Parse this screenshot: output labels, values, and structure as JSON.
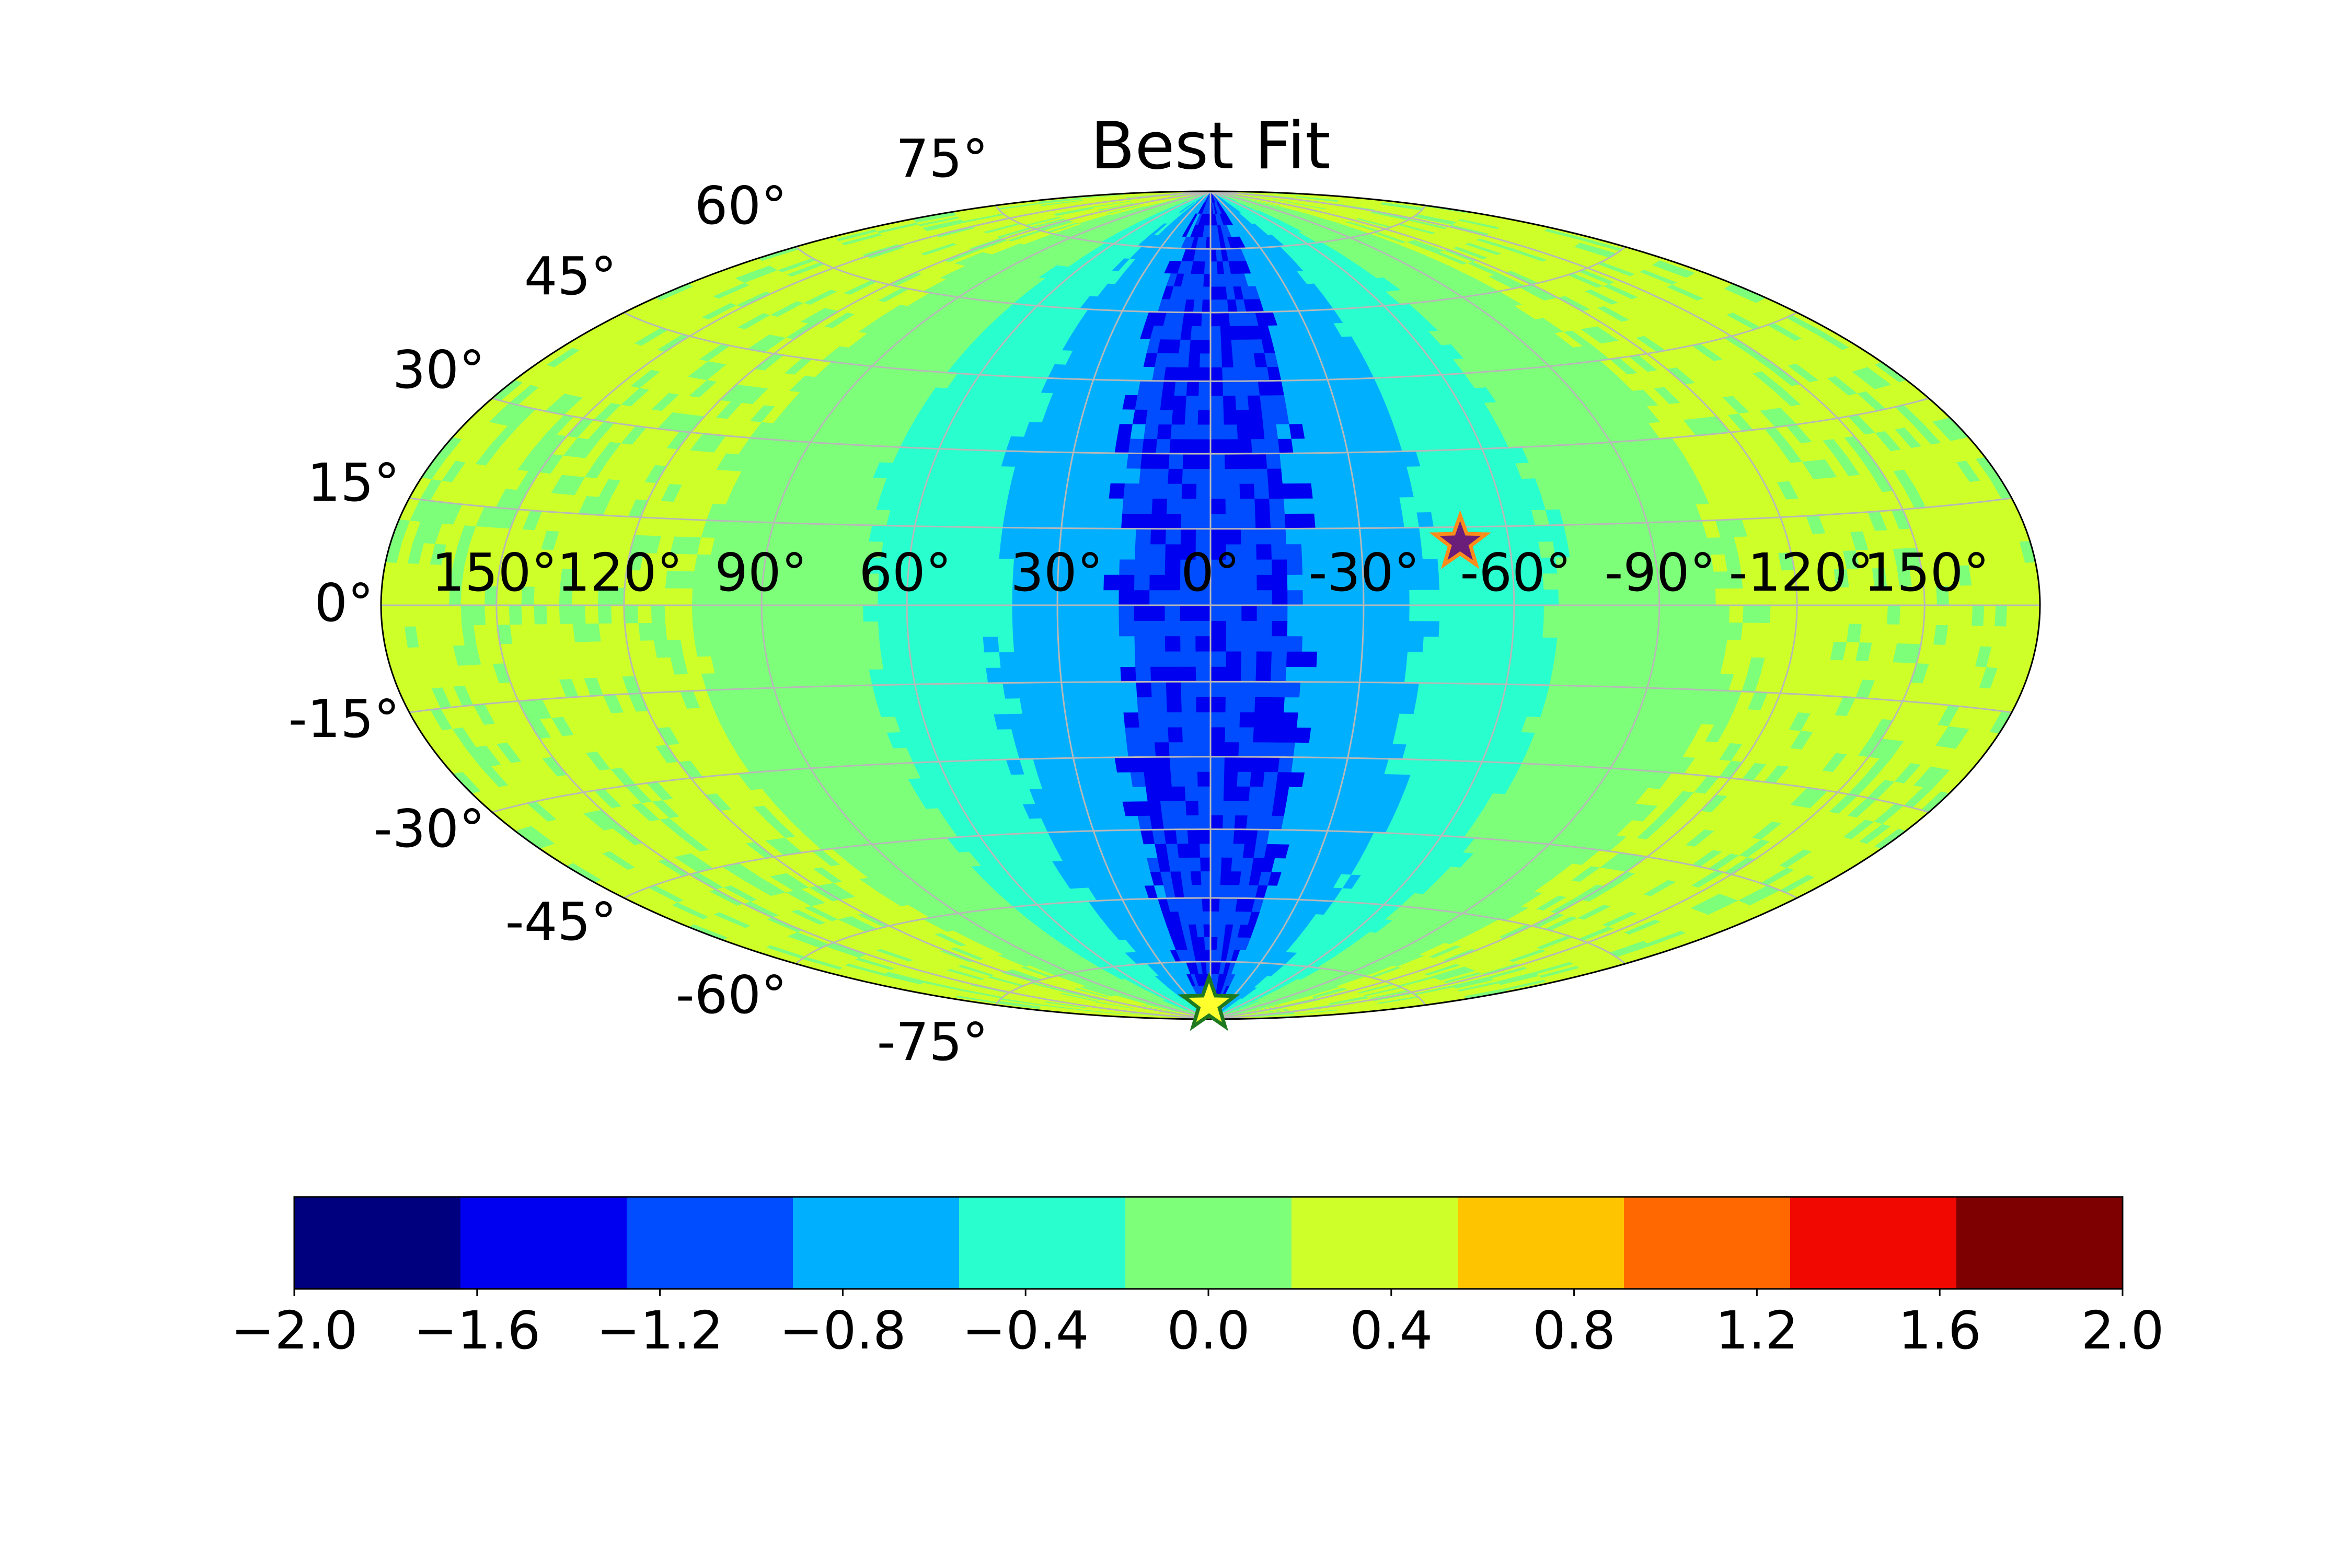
{
  "chart_data": {
    "type": "heatmap",
    "projection": "hammer (all-sky)",
    "title": "Best Fit",
    "lon_ticks": [
      "150°",
      "120°",
      "90°",
      "60°",
      "30°",
      "0°",
      "-30°",
      "-60°",
      "-90°",
      "-120°",
      "150°"
    ],
    "lat_ticks_north": [
      "75°",
      "60°",
      "45°",
      "30°",
      "15°",
      "0°"
    ],
    "lat_ticks_south": [
      "-15°",
      "-30°",
      "-45°",
      "-60°",
      "-75°"
    ],
    "value_range": [
      -2.0,
      2.0
    ],
    "colorbar": {
      "levels": [
        -2.0,
        -1.6364,
        -1.2727,
        -0.9091,
        -0.5455,
        -0.1818,
        0.1818,
        0.5455,
        0.9091,
        1.2727,
        1.6364,
        2.0
      ],
      "colors": [
        "#00007f",
        "#0000f1",
        "#004cff",
        "#00b0ff",
        "#29ffce",
        "#7dff7a",
        "#ceff29",
        "#ffc400",
        "#ff6800",
        "#f10800",
        "#7f0000"
      ],
      "tick_labels": [
        "−2.0",
        "−1.6",
        "−1.2",
        "−0.8",
        "−0.4",
        "0.0",
        "0.4",
        "0.8",
        "1.2",
        "1.6",
        "2.0"
      ],
      "tick_values": [
        -2.0,
        -1.6,
        -1.2,
        -0.8,
        -0.4,
        0.0,
        0.4,
        0.8,
        1.2,
        1.6,
        2.0
      ]
    },
    "field_bands": [
      {
        "abs_lon_max": 18,
        "value": -1.1,
        "speckle": -1.5
      },
      {
        "abs_lon_max": 42,
        "value": -0.75
      },
      {
        "abs_lon_max": 68,
        "value": -0.4
      },
      {
        "abs_lon_max": 105,
        "value": 0.0
      },
      {
        "abs_lon_max": 180,
        "value": 0.35,
        "speckle": 0.0
      }
    ],
    "markers": [
      {
        "name": "star",
        "lon": -50,
        "lat": 12,
        "fill": "#6a1e7a",
        "edge": "#ff8c1a"
      },
      {
        "name": "star",
        "lon": 3,
        "lat": -86,
        "fill": "#ffff2e",
        "edge": "#1f7a1f"
      }
    ],
    "grid": true,
    "grid_color": "#b8b8b8"
  }
}
